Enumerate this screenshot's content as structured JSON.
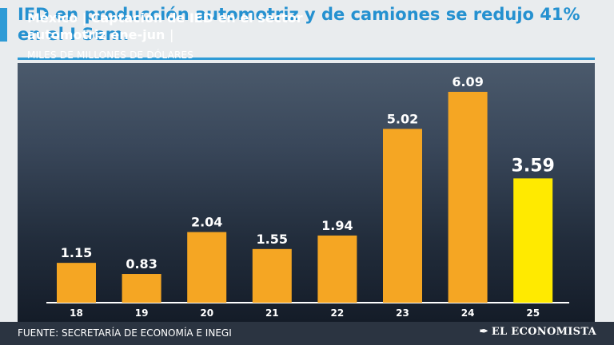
{
  "headline": "IED en producción automotriz y de camiones se redujo 41% en el I Sem.",
  "subtitle": {
    "part1": "México",
    "sep": "|",
    "part2": "Captación de IED en el sector automotriz ene-jun",
    "sep2": "|"
  },
  "units": "MILES DE MILLONES DE DÓLARES",
  "footer": {
    "source": "FUENTE: SECRETARÍA DE ECONOMÍA E INEGI",
    "brand": "EL ECONOMISTA",
    "brand_icon": "pen-nib-logo-icon"
  },
  "colors": {
    "bar": "#f5a623",
    "highlight": "#ffea00",
    "accent": "#2591d0"
  },
  "chart_data": {
    "type": "bar",
    "title": "México | Captación de IED en el sector automotriz ene-jun |",
    "ylabel": "MILES DE MILLONES DE DÓLARES",
    "categories": [
      "18",
      "19",
      "20",
      "21",
      "22",
      "23",
      "24",
      "25"
    ],
    "values": [
      1.15,
      0.83,
      2.04,
      1.55,
      1.94,
      5.02,
      6.09,
      3.59
    ],
    "value_labels": [
      "1.15",
      "0.83",
      "2.04",
      "1.55",
      "1.94",
      "5.02",
      "6.09",
      "3.59"
    ],
    "highlight_category": "25",
    "ylim": [
      0,
      6.09
    ],
    "grid": false,
    "legend": "none"
  }
}
